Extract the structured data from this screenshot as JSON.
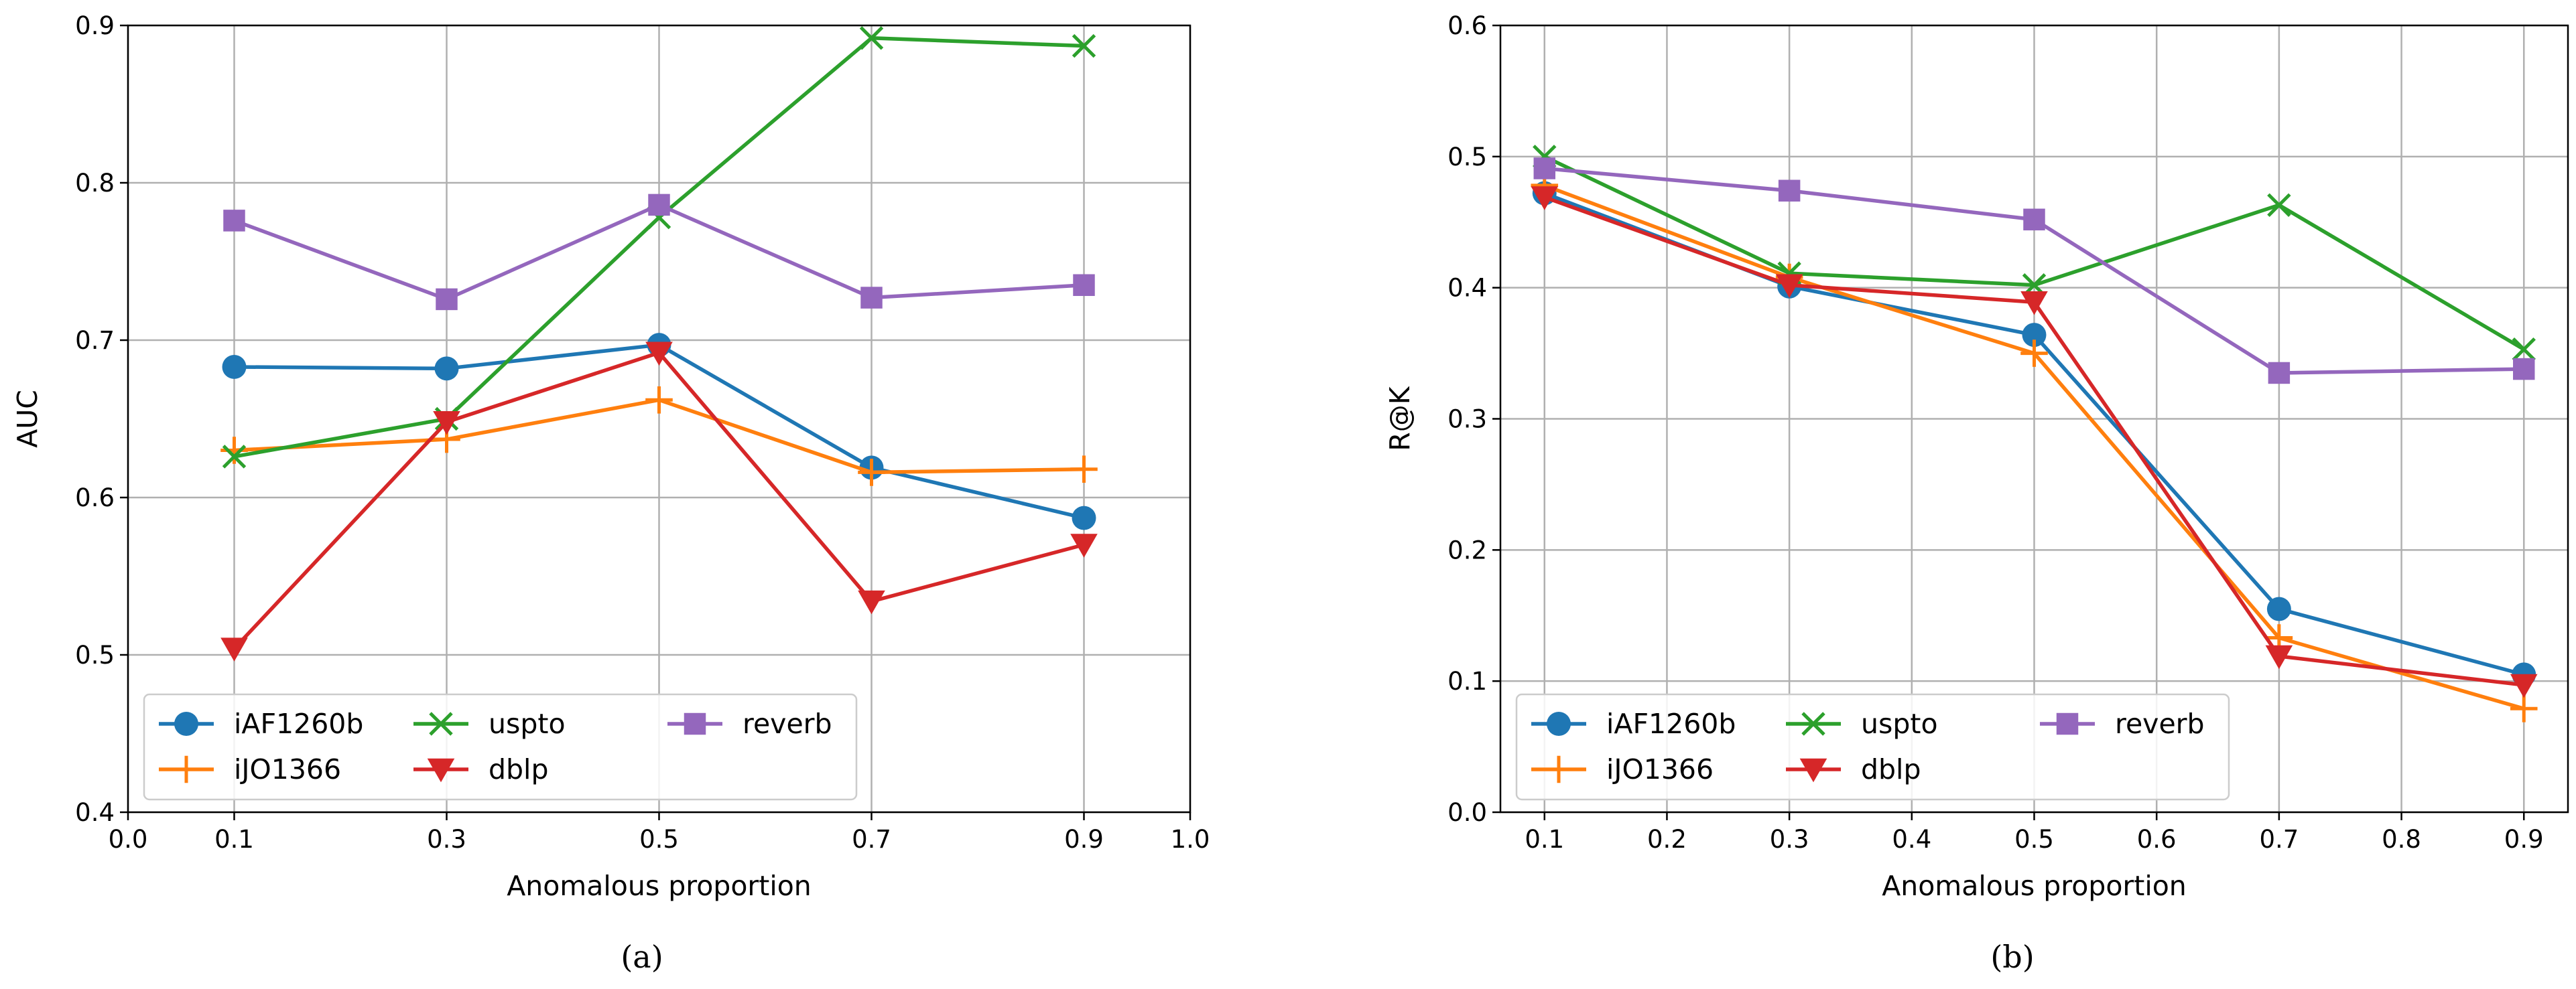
{
  "chart_data": [
    {
      "type": "line",
      "caption": "(a)",
      "xlabel": "Anomalous proportion",
      "ylabel": "AUC",
      "xlim": [
        0.0,
        1.0
      ],
      "ylim": [
        0.4,
        0.9
      ],
      "xticks": [
        0.0,
        0.1,
        0.3,
        0.5,
        0.7,
        0.9,
        1.0
      ],
      "xtick_labels": [
        "0.0",
        "0.1",
        "0.3",
        "0.5",
        "0.7",
        "0.9",
        "1.0"
      ],
      "yticks": [
        0.4,
        0.5,
        0.6,
        0.7,
        0.8,
        0.9
      ],
      "ytick_labels": [
        "0.4",
        "0.5",
        "0.6",
        "0.7",
        "0.8",
        "0.9"
      ],
      "grid": true,
      "legend_position": "lower-left",
      "x": [
        0.1,
        0.3,
        0.5,
        0.7,
        0.9
      ],
      "series": [
        {
          "name": "iAF1260b",
          "color": "#1f77b4",
          "marker": "circle",
          "values": [
            0.683,
            0.682,
            0.697,
            0.619,
            0.587
          ]
        },
        {
          "name": "iJO1366",
          "color": "#ff7f0e",
          "marker": "plus",
          "values": [
            0.63,
            0.637,
            0.662,
            0.616,
            0.618
          ]
        },
        {
          "name": "uspto",
          "color": "#2ca02c",
          "marker": "x",
          "values": [
            0.626,
            0.65,
            0.778,
            0.892,
            0.887
          ]
        },
        {
          "name": "dblp",
          "color": "#d62728",
          "marker": "triangle-down",
          "values": [
            0.504,
            0.648,
            0.692,
            0.534,
            0.57
          ]
        },
        {
          "name": "reverb",
          "color": "#9467bd",
          "marker": "square",
          "values": [
            0.776,
            0.726,
            0.786,
            0.727,
            0.735
          ]
        }
      ]
    },
    {
      "type": "line",
      "caption": "(b)",
      "xlabel": "Anomalous proportion",
      "ylabel": "R@K",
      "xlim": [
        0.064,
        0.936
      ],
      "ylim": [
        0.0,
        0.6
      ],
      "xticks": [
        0.1,
        0.2,
        0.3,
        0.4,
        0.5,
        0.6,
        0.7,
        0.8,
        0.9
      ],
      "xtick_labels": [
        "0.1",
        "0.2",
        "0.3",
        "0.4",
        "0.5",
        "0.6",
        "0.7",
        "0.8",
        "0.9"
      ],
      "yticks": [
        0.0,
        0.1,
        0.2,
        0.3,
        0.4,
        0.5,
        0.6
      ],
      "ytick_labels": [
        "0.0",
        "0.1",
        "0.2",
        "0.3",
        "0.4",
        "0.5",
        "0.6"
      ],
      "grid": true,
      "legend_position": "lower-left",
      "x": [
        0.1,
        0.3,
        0.5,
        0.7,
        0.9
      ],
      "series": [
        {
          "name": "iAF1260b",
          "color": "#1f77b4",
          "marker": "circle",
          "values": [
            0.472,
            0.401,
            0.364,
            0.155,
            0.105
          ]
        },
        {
          "name": "iJO1366",
          "color": "#ff7f0e",
          "marker": "plus",
          "values": [
            0.478,
            0.408,
            0.35,
            0.133,
            0.079
          ]
        },
        {
          "name": "uspto",
          "color": "#2ca02c",
          "marker": "x",
          "values": [
            0.5,
            0.411,
            0.402,
            0.463,
            0.353
          ]
        },
        {
          "name": "dblp",
          "color": "#d62728",
          "marker": "triangle-down",
          "values": [
            0.469,
            0.402,
            0.389,
            0.119,
            0.097
          ]
        },
        {
          "name": "reverb",
          "color": "#9467bd",
          "marker": "square",
          "values": [
            0.491,
            0.474,
            0.452,
            0.335,
            0.338
          ]
        }
      ]
    }
  ]
}
